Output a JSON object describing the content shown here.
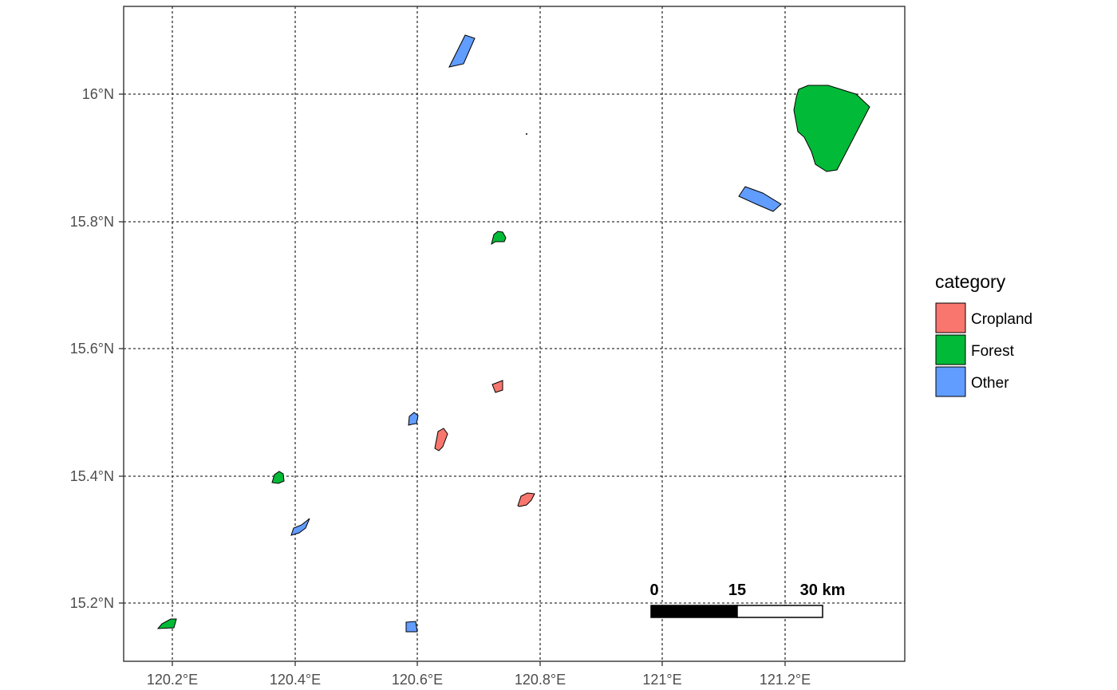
{
  "map": {
    "x_ticks": [
      "120.2°E",
      "120.4°E",
      "120.6°E",
      "120.8°E",
      "121°E",
      "121.2°E"
    ],
    "y_ticks": [
      "16°N",
      "15.8°N",
      "15.6°N",
      "15.4°N",
      "15.2°N"
    ],
    "legend": {
      "title": "category",
      "items": [
        {
          "label": "Cropland",
          "color": "#F8766D"
        },
        {
          "label": "Forest",
          "color": "#00BA38"
        },
        {
          "label": "Other",
          "color": "#619CFF"
        }
      ]
    },
    "scale_bar": {
      "labels": [
        "0",
        "15",
        "30 km"
      ]
    },
    "grid": true,
    "features": [
      {
        "category": "Other",
        "name": "polygon-other-north"
      },
      {
        "category": "Forest",
        "name": "polygon-forest-large-ne"
      },
      {
        "category": "Other",
        "name": "polygon-other-east"
      },
      {
        "category": "Forest",
        "name": "polygon-forest-central"
      },
      {
        "category": "Cropland",
        "name": "polygon-cropland-1"
      },
      {
        "category": "Other",
        "name": "polygon-other-mid"
      },
      {
        "category": "Cropland",
        "name": "polygon-cropland-2"
      },
      {
        "category": "Forest",
        "name": "polygon-forest-west"
      },
      {
        "category": "Cropland",
        "name": "polygon-cropland-3"
      },
      {
        "category": "Other",
        "name": "polygon-other-sw"
      },
      {
        "category": "Forest",
        "name": "polygon-forest-sw"
      },
      {
        "category": "Other",
        "name": "polygon-other-south"
      }
    ]
  }
}
